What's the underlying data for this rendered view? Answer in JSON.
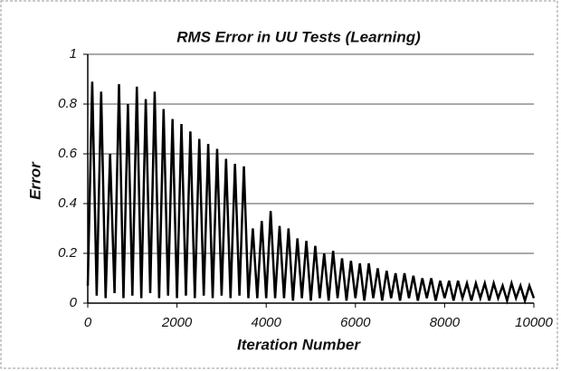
{
  "chart_data": {
    "type": "line",
    "title": "RMS Error in UU Tests (Learning)",
    "x_label": "Iteration Number",
    "y_label": "Error",
    "color": "#000000",
    "grid": true,
    "xlim": [
      0,
      10000
    ],
    "xticks": [
      0,
      2000,
      4000,
      6000,
      8000,
      10000
    ],
    "ylim": [
      0,
      1
    ],
    "yticks": [
      0,
      0.2,
      0.4,
      0.6,
      0.8,
      1
    ],
    "x": [
      0,
      100,
      200,
      300,
      400,
      500,
      600,
      700,
      800,
      900,
      1000,
      1100,
      1200,
      1300,
      1400,
      1500,
      1600,
      1700,
      1800,
      1900,
      2000,
      2100,
      2200,
      2300,
      2400,
      2500,
      2600,
      2700,
      2800,
      2900,
      3000,
      3100,
      3200,
      3300,
      3400,
      3500,
      3600,
      3700,
      3800,
      3900,
      4000,
      4100,
      4200,
      4300,
      4400,
      4500,
      4600,
      4700,
      4800,
      4900,
      5000,
      5100,
      5200,
      5300,
      5400,
      5500,
      5600,
      5700,
      5800,
      5900,
      6000,
      6100,
      6200,
      6300,
      6400,
      6500,
      6600,
      6700,
      6800,
      6900,
      7000,
      7100,
      7200,
      7300,
      7400,
      7500,
      7600,
      7700,
      7800,
      7900,
      8000,
      8100,
      8200,
      8300,
      8400,
      8500,
      8600,
      8700,
      8800,
      8900,
      9000,
      9100,
      9200,
      9300,
      9400,
      9500,
      9600,
      9700,
      9800,
      9900,
      10000
    ],
    "values": [
      0.07,
      0.89,
      0.03,
      0.85,
      0.02,
      0.6,
      0.04,
      0.88,
      0.02,
      0.8,
      0.03,
      0.87,
      0.02,
      0.82,
      0.04,
      0.85,
      0.02,
      0.78,
      0.03,
      0.74,
      0.02,
      0.72,
      0.03,
      0.69,
      0.02,
      0.66,
      0.03,
      0.64,
      0.02,
      0.62,
      0.03,
      0.58,
      0.02,
      0.56,
      0.03,
      0.55,
      0.02,
      0.3,
      0.02,
      0.33,
      0.02,
      0.37,
      0.02,
      0.31,
      0.02,
      0.3,
      0.01,
      0.26,
      0.02,
      0.25,
      0.01,
      0.23,
      0.02,
      0.2,
      0.01,
      0.21,
      0.02,
      0.18,
      0.01,
      0.17,
      0.02,
      0.16,
      0.01,
      0.16,
      0.02,
      0.14,
      0.01,
      0.13,
      0.02,
      0.12,
      0.01,
      0.12,
      0.02,
      0.11,
      0.01,
      0.1,
      0.02,
      0.1,
      0.01,
      0.09,
      0.02,
      0.09,
      0.01,
      0.09,
      0.02,
      0.08,
      0.01,
      0.08,
      0.02,
      0.08,
      0.01,
      0.08,
      0.02,
      0.07,
      0.01,
      0.08,
      0.02,
      0.07,
      0.01,
      0.07,
      0.02
    ]
  }
}
